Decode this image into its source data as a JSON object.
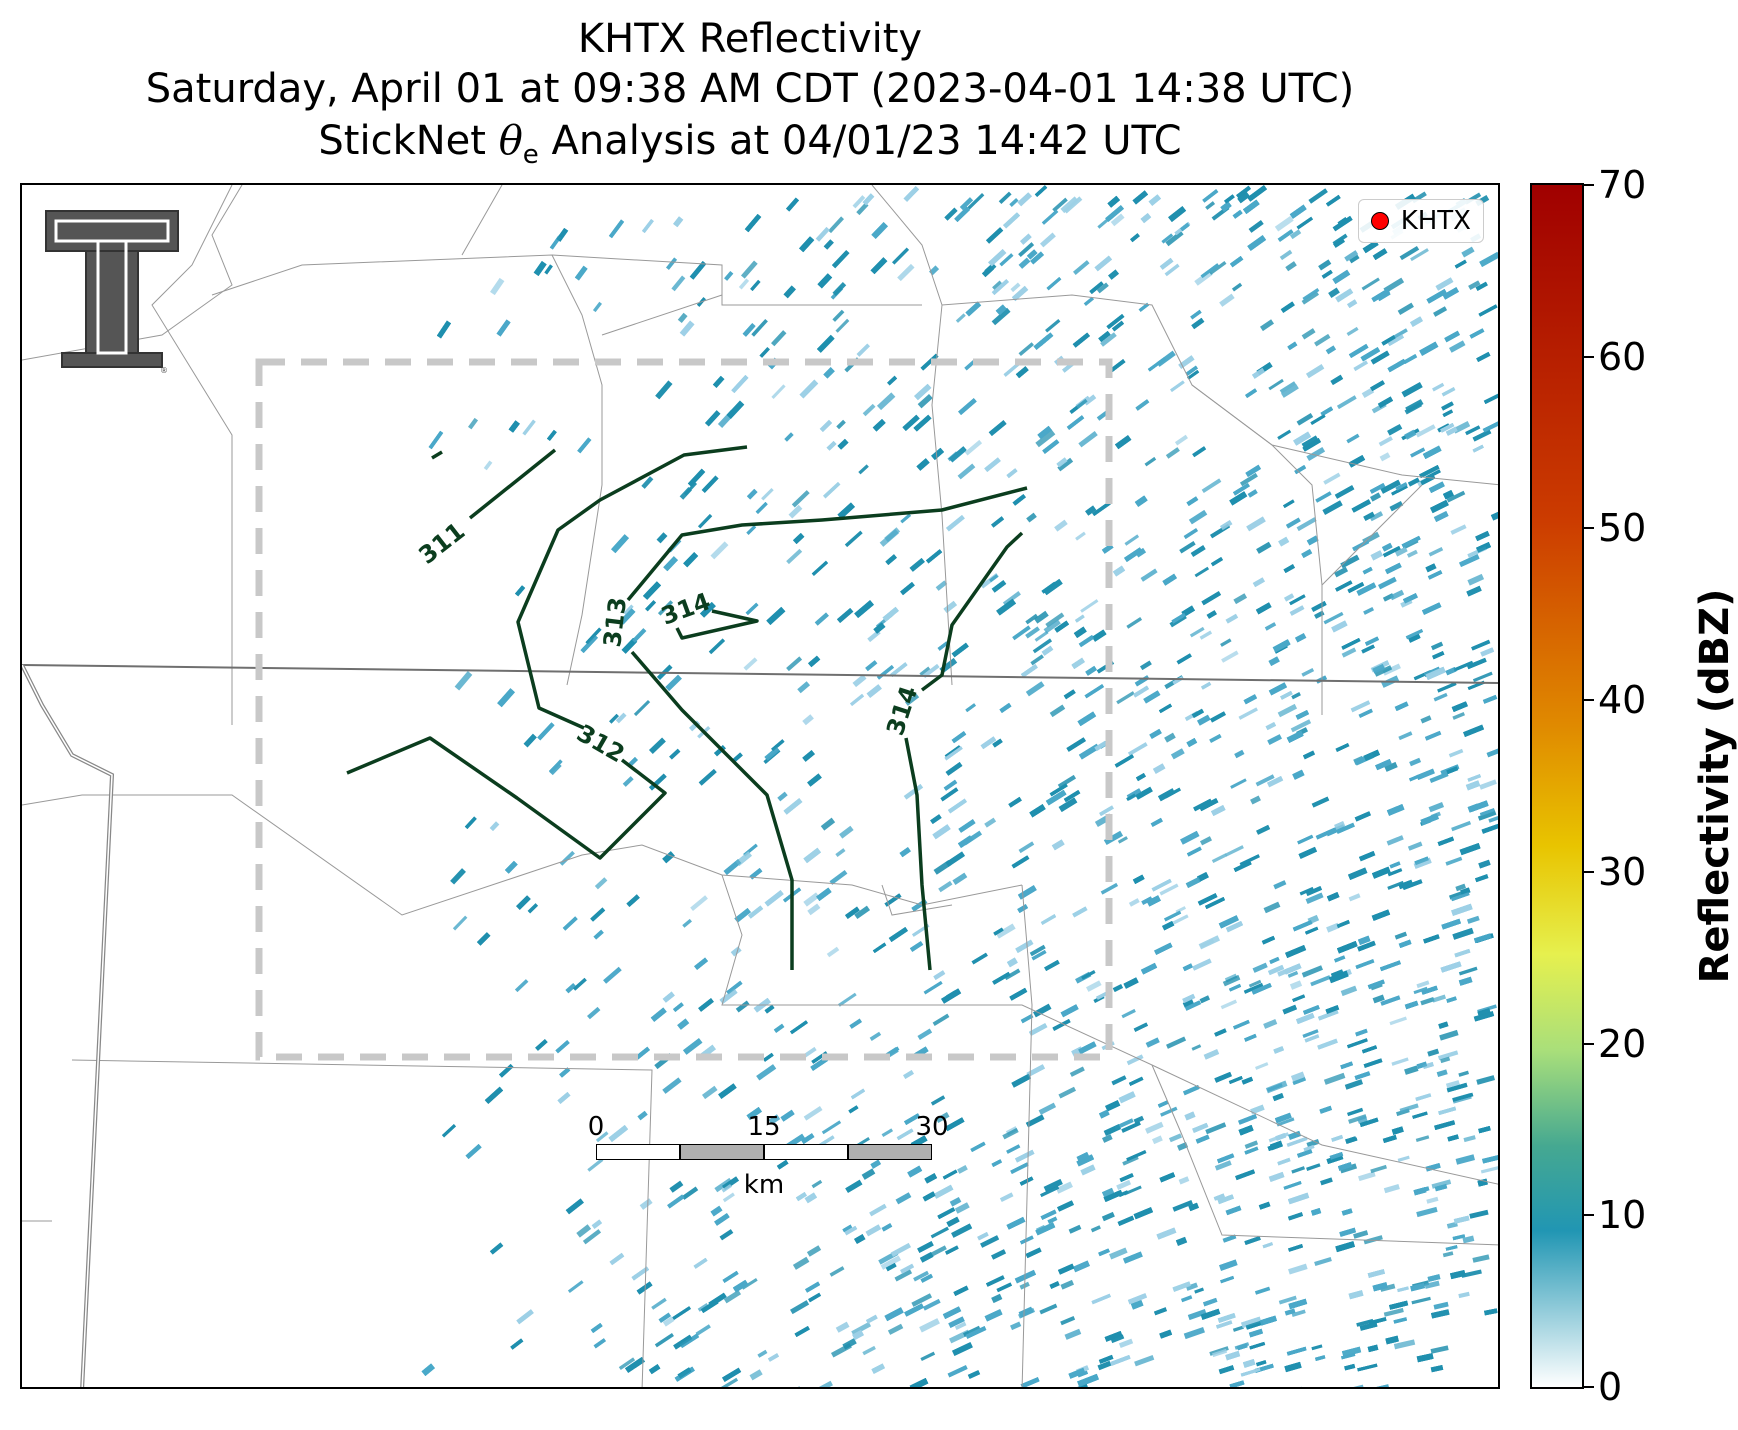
{
  "title": {
    "line1": "KHTX Reflectivity",
    "line2": "Saturday, April 01 at 09:38 AM CDT (2023-04-01 14:38 UTC)",
    "line3_prefix": "StickNet ",
    "line3_symbol": "θ",
    "line3_sub": "e",
    "line3_suffix": " Analysis at 04/01/23 14:42 UTC"
  },
  "legend": {
    "label": "KHTX",
    "marker_color": "#ff0000"
  },
  "colorbar": {
    "label": "Reflectivity (dBZ)",
    "ticks": [
      "0",
      "10",
      "20",
      "30",
      "40",
      "50",
      "60",
      "70"
    ]
  },
  "scalebar": {
    "labels": [
      "0",
      "15",
      "30"
    ],
    "unit": "km"
  },
  "contours": {
    "color": "#0b3d1e",
    "labels": [
      "311",
      "312",
      "313",
      "314",
      "314"
    ]
  },
  "colors": {
    "echo_dark": "#1f8fae",
    "echo_mid": "#4aa8c8",
    "echo_light": "#9dd0e6",
    "county_line": "#888888",
    "state_line": "#666666",
    "domain_box": "#c8c8c8"
  },
  "icons": {
    "logo": "texas-tech-double-t-logo"
  }
}
